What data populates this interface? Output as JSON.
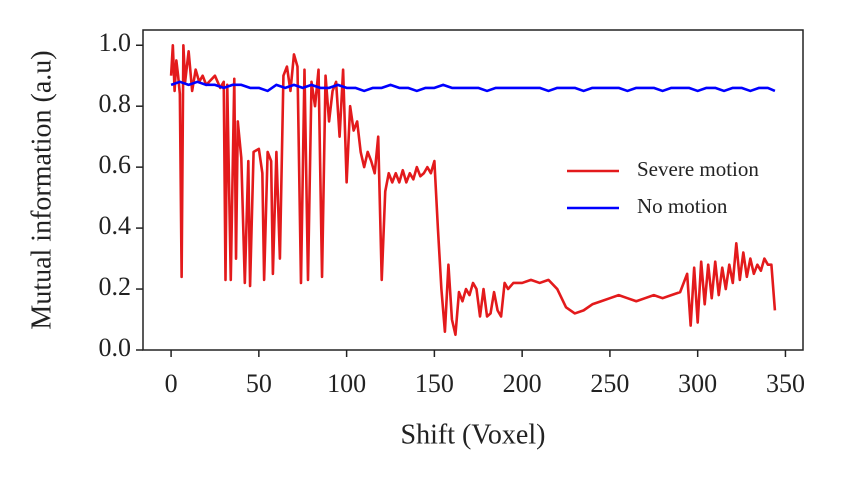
{
  "chart_data": {
    "type": "line",
    "xlabel": "Shift (Voxel)",
    "ylabel": "Mutual information (a.u)",
    "xlim": [
      -16,
      360
    ],
    "ylim": [
      0,
      1.05
    ],
    "xticks": [
      0,
      50,
      100,
      150,
      200,
      250,
      300,
      350
    ],
    "yticks": [
      {
        "value": 0,
        "label": "0.0"
      },
      {
        "value": 0.2,
        "label": "0.2"
      },
      {
        "value": 0.4,
        "label": "0.4"
      },
      {
        "value": 0.6,
        "label": "0.6"
      },
      {
        "value": 0.8,
        "label": "0.8"
      },
      {
        "value": 1.0,
        "label": "1.0"
      }
    ],
    "grid": false,
    "legend": "right",
    "series": [
      {
        "name": "Severe motion",
        "color": "#e31a1c",
        "x": [
          0,
          1,
          2,
          3,
          4,
          5,
          6,
          7,
          8,
          9,
          10,
          12,
          14,
          16,
          18,
          20,
          25,
          28,
          30,
          31,
          32,
          34,
          36,
          37,
          38,
          40,
          42,
          44,
          45,
          47,
          50,
          52,
          53,
          55,
          57,
          58,
          60,
          62,
          64,
          66,
          68,
          70,
          72,
          74,
          76,
          78,
          80,
          82,
          84,
          86,
          88,
          90,
          92,
          94,
          96,
          98,
          100,
          102,
          104,
          106,
          108,
          110,
          112,
          114,
          116,
          118,
          120,
          122,
          124,
          126,
          128,
          130,
          132,
          134,
          136,
          138,
          140,
          142,
          144,
          146,
          148,
          150,
          152,
          154,
          156,
          158,
          160,
          162,
          164,
          166,
          168,
          170,
          172,
          174,
          176,
          178,
          180,
          182,
          184,
          186,
          188,
          190,
          192,
          195,
          200,
          205,
          210,
          215,
          220,
          225,
          230,
          235,
          240,
          245,
          250,
          255,
          260,
          265,
          270,
          275,
          280,
          285,
          290,
          294,
          296,
          298,
          300,
          302,
          304,
          306,
          308,
          310,
          312,
          314,
          316,
          318,
          320,
          322,
          324,
          326,
          328,
          330,
          332,
          334,
          336,
          338,
          340,
          342,
          344
        ],
        "values": [
          0.9,
          1.0,
          0.85,
          0.95,
          0.9,
          0.84,
          0.24,
          1.0,
          0.88,
          0.93,
          0.98,
          0.85,
          0.92,
          0.88,
          0.9,
          0.87,
          0.9,
          0.86,
          0.88,
          0.23,
          0.87,
          0.23,
          0.89,
          0.3,
          0.75,
          0.63,
          0.22,
          0.62,
          0.21,
          0.65,
          0.66,
          0.58,
          0.23,
          0.65,
          0.62,
          0.25,
          0.65,
          0.3,
          0.9,
          0.93,
          0.85,
          0.97,
          0.93,
          0.22,
          0.92,
          0.23,
          0.88,
          0.8,
          0.92,
          0.24,
          0.9,
          0.75,
          0.85,
          0.88,
          0.7,
          0.92,
          0.55,
          0.8,
          0.72,
          0.75,
          0.65,
          0.6,
          0.65,
          0.62,
          0.58,
          0.7,
          0.23,
          0.52,
          0.58,
          0.55,
          0.58,
          0.55,
          0.59,
          0.55,
          0.58,
          0.56,
          0.6,
          0.57,
          0.58,
          0.6,
          0.58,
          0.62,
          0.4,
          0.2,
          0.06,
          0.28,
          0.1,
          0.05,
          0.19,
          0.16,
          0.2,
          0.18,
          0.22,
          0.2,
          0.11,
          0.2,
          0.11,
          0.12,
          0.19,
          0.13,
          0.11,
          0.22,
          0.2,
          0.22,
          0.22,
          0.23,
          0.22,
          0.23,
          0.2,
          0.14,
          0.12,
          0.13,
          0.15,
          0.16,
          0.17,
          0.18,
          0.17,
          0.16,
          0.17,
          0.18,
          0.17,
          0.18,
          0.19,
          0.25,
          0.08,
          0.27,
          0.09,
          0.29,
          0.15,
          0.28,
          0.17,
          0.29,
          0.18,
          0.27,
          0.2,
          0.28,
          0.22,
          0.35,
          0.23,
          0.32,
          0.24,
          0.3,
          0.25,
          0.28,
          0.26,
          0.3,
          0.28,
          0.28,
          0.13
        ]
      },
      {
        "name": "No motion",
        "color": "#0000ff",
        "x": [
          0,
          5,
          10,
          15,
          20,
          25,
          30,
          35,
          40,
          45,
          50,
          55,
          60,
          65,
          70,
          75,
          80,
          85,
          90,
          95,
          100,
          105,
          110,
          115,
          120,
          125,
          130,
          135,
          140,
          145,
          150,
          155,
          160,
          165,
          170,
          175,
          180,
          185,
          190,
          195,
          200,
          205,
          210,
          215,
          220,
          225,
          230,
          235,
          240,
          245,
          250,
          255,
          260,
          265,
          270,
          275,
          280,
          285,
          290,
          295,
          300,
          305,
          310,
          315,
          320,
          325,
          330,
          335,
          340,
          344
        ],
        "values": [
          0.87,
          0.88,
          0.87,
          0.88,
          0.87,
          0.87,
          0.86,
          0.87,
          0.87,
          0.86,
          0.86,
          0.85,
          0.87,
          0.86,
          0.87,
          0.86,
          0.87,
          0.86,
          0.86,
          0.87,
          0.86,
          0.86,
          0.85,
          0.86,
          0.86,
          0.87,
          0.86,
          0.86,
          0.85,
          0.86,
          0.86,
          0.87,
          0.86,
          0.86,
          0.86,
          0.86,
          0.85,
          0.86,
          0.86,
          0.86,
          0.86,
          0.86,
          0.86,
          0.85,
          0.86,
          0.86,
          0.86,
          0.85,
          0.86,
          0.86,
          0.86,
          0.86,
          0.85,
          0.86,
          0.86,
          0.86,
          0.85,
          0.86,
          0.86,
          0.86,
          0.85,
          0.86,
          0.86,
          0.85,
          0.86,
          0.86,
          0.85,
          0.86,
          0.86,
          0.85
        ]
      }
    ]
  }
}
